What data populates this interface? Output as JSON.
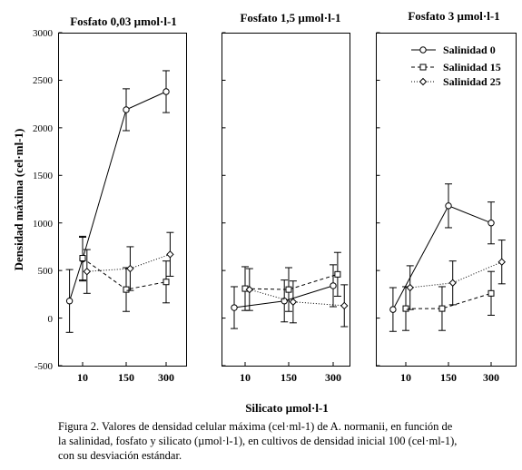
{
  "chart_data": {
    "type": "line",
    "ylabel": "Densidad máxima (cel·ml-1)",
    "xlabel": "Silicato µmol·l-1",
    "yticks": [
      -500,
      0,
      500,
      1000,
      1500,
      2000,
      2500,
      3000
    ],
    "ytick_labels": [
      "-500",
      "0",
      "500",
      "1000",
      "1500",
      "2000",
      "2500",
      "3000"
    ],
    "ylim": [
      -500,
      3000
    ],
    "categories": [
      "10",
      "150",
      "300"
    ],
    "legend": {
      "placement": "top-right (third panel)"
    },
    "panels": [
      {
        "title": "Fosfato 0,03 µmol·l-1",
        "series": [
          {
            "name": "Salinidad 0",
            "style": "solid",
            "marker": "circle",
            "x": [
              -0.3,
              0,
              1,
              2
            ],
            "values": [
              180,
              620,
              2190,
              2380
            ],
            "err": [
              330,
              230,
              220,
              220
            ]
          },
          {
            "name": "Salinidad 15",
            "style": "dashed",
            "marker": "square",
            "x": [
              0,
              1,
              2
            ],
            "values": [
              630,
              300,
              380
            ],
            "err": [
              230,
              230,
              220
            ]
          },
          {
            "name": "Salinidad 25",
            "style": "dotted",
            "marker": "diamond",
            "x": [
              0.1,
              1.1,
              2.1
            ],
            "values": [
              490,
              520,
              670
            ],
            "err": [
              230,
              230,
              230
            ]
          }
        ]
      },
      {
        "title": "Fosfato 1,5 µmol·l-1",
        "series": [
          {
            "name": "Salinidad 0",
            "style": "solid",
            "marker": "circle",
            "x": [
              -0.25,
              0.9,
              2
            ],
            "values": [
              110,
              180,
              340
            ],
            "err": [
              220,
              220,
              220
            ]
          },
          {
            "name": "Salinidad 15",
            "style": "dashed",
            "marker": "square",
            "x": [
              0,
              1,
              2.1
            ],
            "values": [
              310,
              300,
              460
            ],
            "err": [
              230,
              230,
              230
            ]
          },
          {
            "name": "Salinidad 25",
            "style": "dotted",
            "marker": "diamond",
            "x": [
              0.1,
              1.1,
              2.25
            ],
            "values": [
              300,
              170,
              130
            ],
            "err": [
              220,
              220,
              220
            ]
          }
        ]
      },
      {
        "title": "Fosfato 3 µmol·l-1",
        "series": [
          {
            "name": "Salinidad 0",
            "style": "solid",
            "marker": "circle",
            "x": [
              -0.3,
              1,
              2
            ],
            "values": [
              90,
              1180,
              1000
            ],
            "err": [
              230,
              230,
              220
            ]
          },
          {
            "name": "Salinidad 15",
            "style": "dashed",
            "marker": "square",
            "x": [
              0,
              0.85,
              2
            ],
            "values": [
              100,
              100,
              260
            ],
            "err": [
              230,
              230,
              230
            ]
          },
          {
            "name": "Salinidad 25",
            "style": "dotted",
            "marker": "diamond",
            "x": [
              0.1,
              1.1,
              2.25
            ],
            "values": [
              320,
              370,
              590
            ],
            "err": [
              230,
              230,
              230
            ]
          }
        ]
      }
    ]
  },
  "caption": {
    "line1": "Figura 2. Valores de densidad celular máxima (cel·ml-1) de A. normanii, en función de",
    "line2": "la salinidad,  fosfato y silicato (µmol·l-1), en cultivos de densidad inicial 100 (cel·ml-1),",
    "line3": "con su desviación estándar."
  }
}
